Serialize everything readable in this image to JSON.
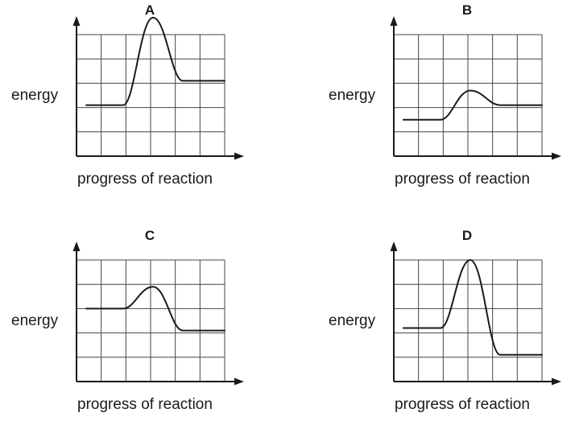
{
  "panels": [
    {
      "label": "A",
      "y_label": "energy",
      "x_label": "progress of reaction",
      "curve": {
        "start_level": 2.1,
        "peak_level": 5.7,
        "end_level": 3.1
      }
    },
    {
      "label": "B",
      "y_label": "energy",
      "x_label": "progress of reaction",
      "curve": {
        "start_level": 1.5,
        "peak_level": 2.7,
        "end_level": 2.1
      }
    },
    {
      "label": "C",
      "y_label": "energy",
      "x_label": "progress of reaction",
      "curve": {
        "start_level": 3.0,
        "peak_level": 3.9,
        "end_level": 2.1
      }
    },
    {
      "label": "D",
      "y_label": "energy",
      "x_label": "progress of reaction",
      "curve": {
        "start_level": 2.2,
        "peak_level": 5.0,
        "end_level": 1.1
      }
    }
  ]
}
